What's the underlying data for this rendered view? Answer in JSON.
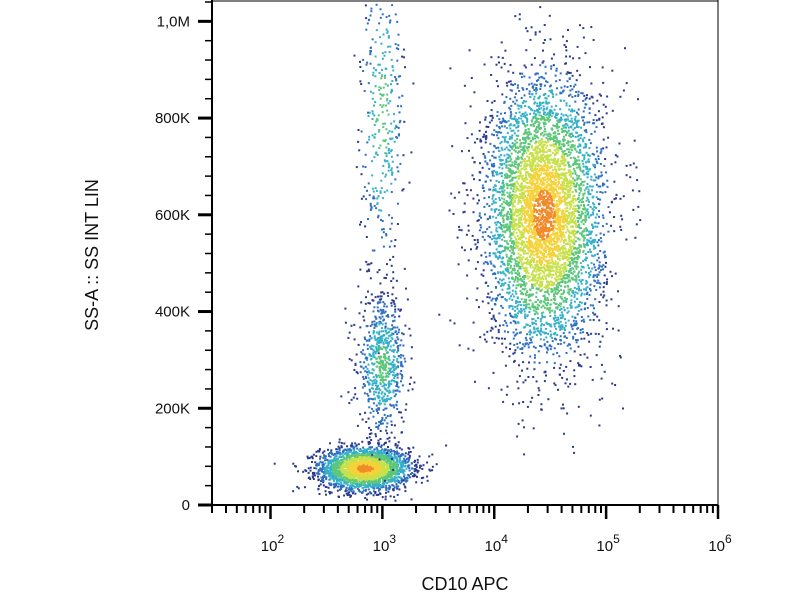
{
  "chart_data": {
    "type": "scatter",
    "title": "",
    "xlabel": "CD10 APC",
    "ylabel": "SS-A :: SS INT LIN",
    "x_scale": "log",
    "y_scale": "linear",
    "xlim": [
      30,
      1000000
    ],
    "ylim": [
      0,
      1040000
    ],
    "grid": false,
    "legend": "none",
    "x_ticks": [
      {
        "value": 100,
        "base": "10",
        "exp": "2"
      },
      {
        "value": 1000,
        "base": "10",
        "exp": "3"
      },
      {
        "value": 10000,
        "base": "10",
        "exp": "4"
      },
      {
        "value": 100000,
        "base": "10",
        "exp": "5"
      },
      {
        "value": 1000000,
        "base": "10",
        "exp": "6"
      }
    ],
    "y_ticks": [
      {
        "value": 0,
        "label": "0"
      },
      {
        "value": 200000,
        "label": "200K"
      },
      {
        "value": 400000,
        "label": "400K"
      },
      {
        "value": 600000,
        "label": "600K"
      },
      {
        "value": 800000,
        "label": "800K"
      },
      {
        "value": 1000000,
        "label": "1,0M"
      }
    ],
    "density_colors": [
      "#2b3a8c",
      "#2f6fc0",
      "#35b0c8",
      "#5cc67a",
      "#c8e04a",
      "#f5d23a",
      "#f08a2a",
      "#e0302a"
    ],
    "populations": [
      {
        "name": "",
        "x_center": 700,
        "y_center": 75000,
        "x_spread_decades": 0.2,
        "y_spread": 22000,
        "count": 2600
      },
      {
        "name": "",
        "x_center": 1000,
        "y_center": 290000,
        "x_spread_decades": 0.11,
        "y_spread": 70000,
        "count": 700
      },
      {
        "name": "",
        "x_center": 28000,
        "y_center": 600000,
        "x_spread_decades": 0.26,
        "y_spread": 140000,
        "count": 5200
      },
      {
        "name": "",
        "x_center": 1000,
        "y_center": 800000,
        "x_spread_decades": 0.1,
        "y_spread": 160000,
        "count": 350
      }
    ]
  }
}
